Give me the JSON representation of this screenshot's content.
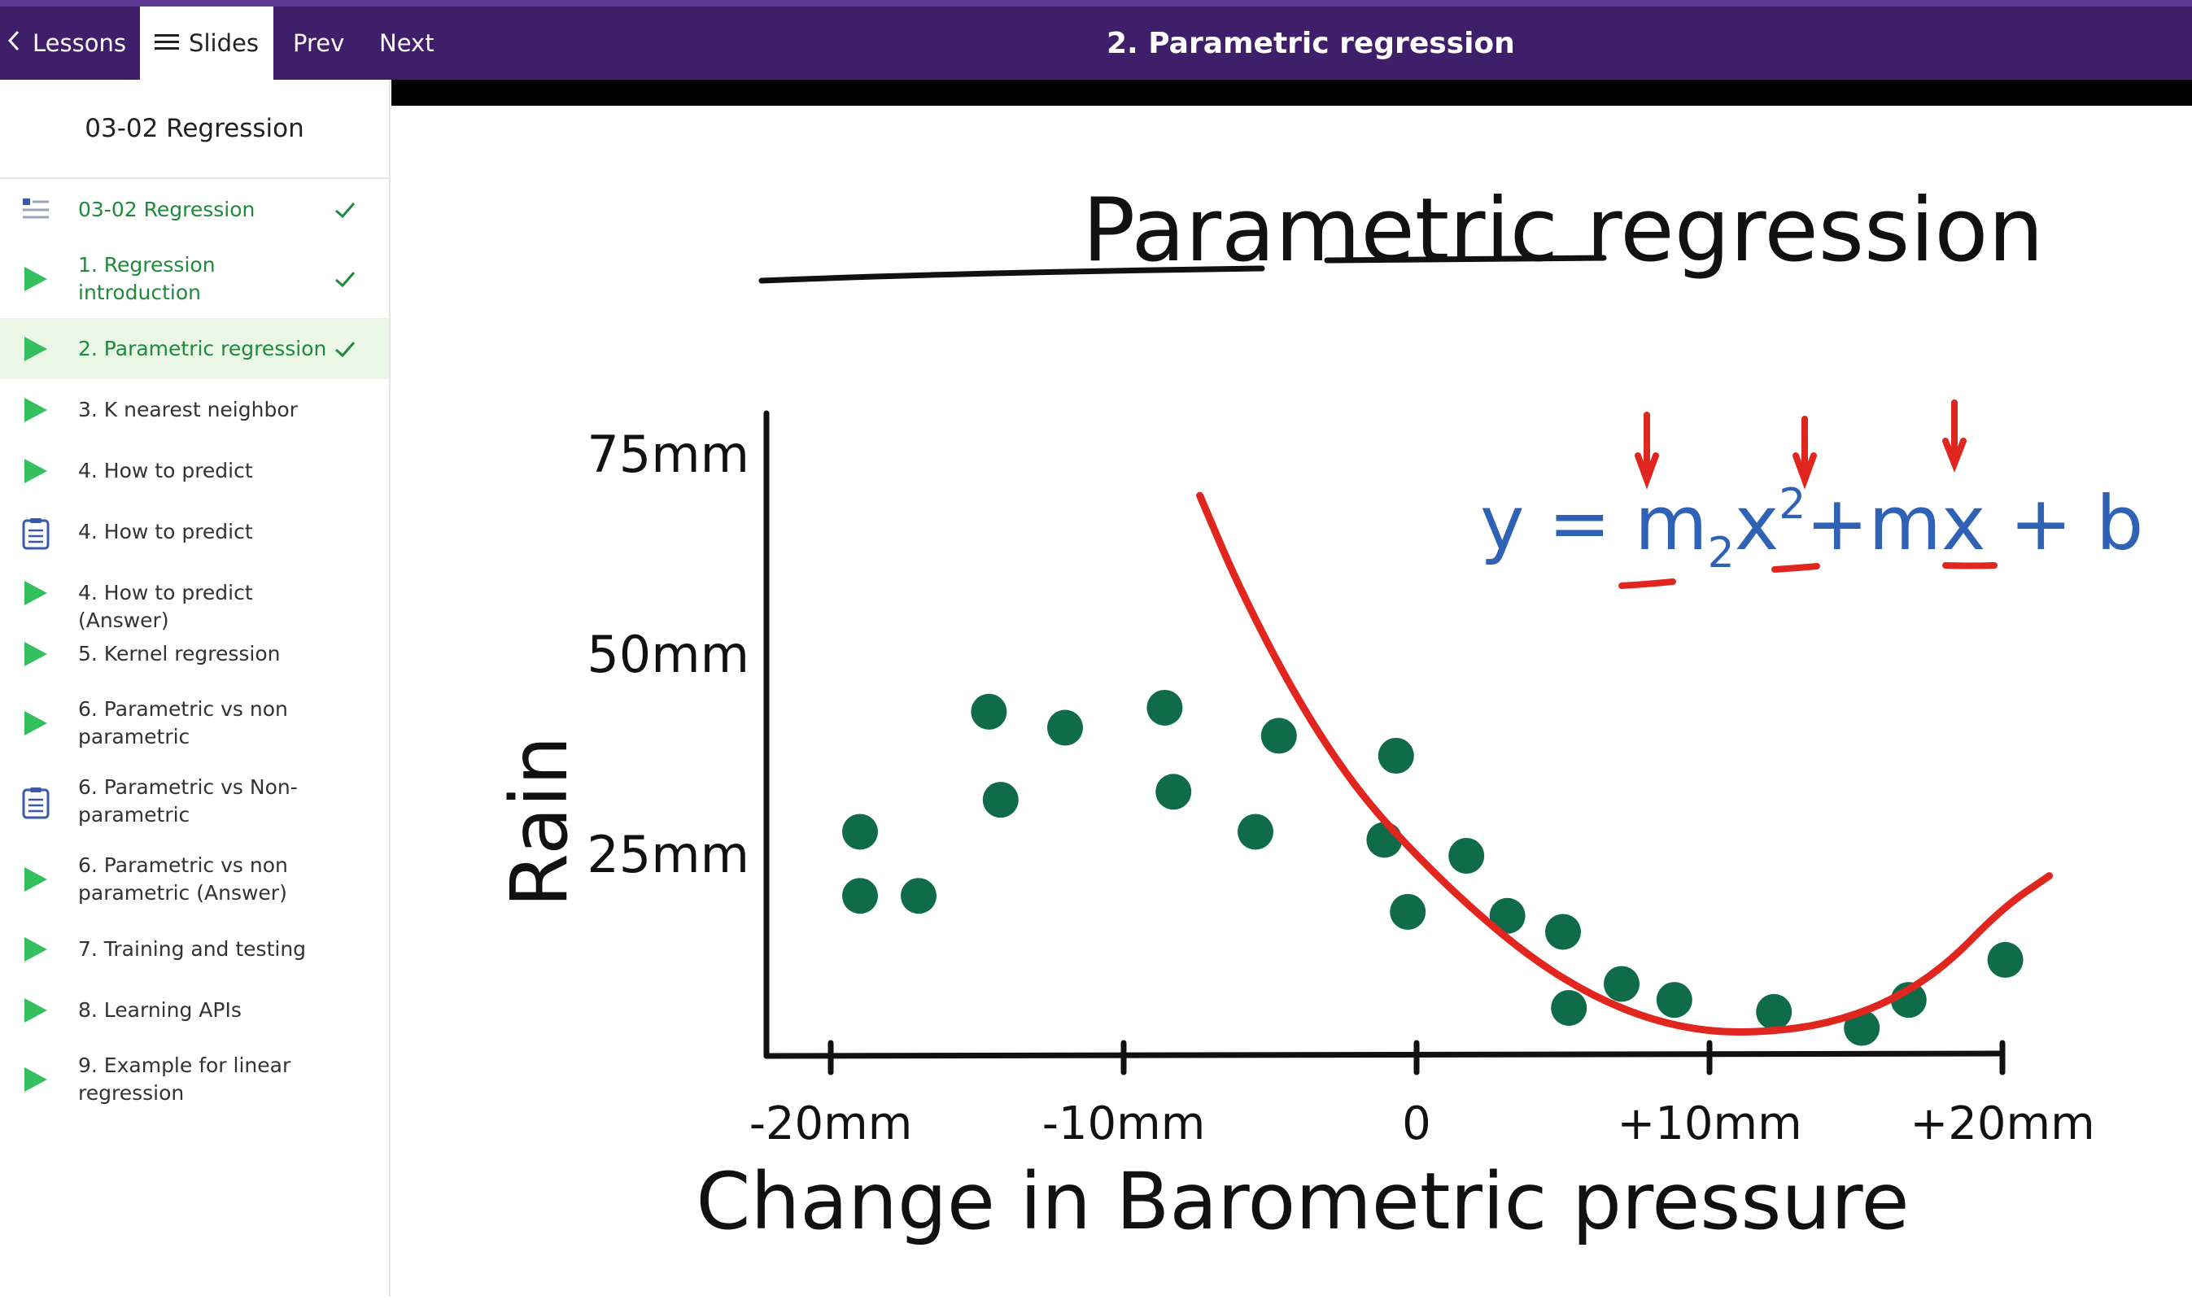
{
  "topbar": {
    "lessons_label": "Lessons",
    "slides_label": "Slides",
    "prev_label": "Prev",
    "next_label": "Next",
    "title": "2. Parametric regression"
  },
  "sidebar": {
    "header": "03-02 Regression",
    "items": [
      {
        "label_lines": [
          "03-02 Regression"
        ],
        "icon": "list-icon",
        "checked": true
      },
      {
        "label_lines": [
          "1. Regression",
          "introduction"
        ],
        "icon": "play-icon",
        "checked": true
      },
      {
        "label_lines": [
          "2. Parametric regression"
        ],
        "icon": "play-icon",
        "checked": true,
        "active": true
      },
      {
        "label_lines": [
          "3. K nearest neighbor"
        ],
        "icon": "play-icon",
        "checked": false
      },
      {
        "label_lines": [
          "4. How to predict"
        ],
        "icon": "play-icon",
        "checked": false
      },
      {
        "label_lines": [
          "4. How to predict"
        ],
        "icon": "quiz-icon",
        "checked": false
      },
      {
        "label_lines": [
          "4. How to predict (Answer)"
        ],
        "icon": "play-icon",
        "checked": false
      },
      {
        "label_lines": [
          "5. Kernel regression"
        ],
        "icon": "play-icon",
        "checked": false
      },
      {
        "label_lines": [
          "6. Parametric vs non",
          "parametric"
        ],
        "icon": "play-icon",
        "checked": false
      },
      {
        "label_lines": [
          "6. Parametric vs Non-",
          "parametric"
        ],
        "icon": "quiz-icon",
        "checked": false
      },
      {
        "label_lines": [
          "6. Parametric vs non",
          "parametric (Answer)"
        ],
        "icon": "play-icon",
        "checked": false
      },
      {
        "label_lines": [
          "7. Training and testing"
        ],
        "icon": "play-icon",
        "checked": false
      },
      {
        "label_lines": [
          "8. Learning APIs"
        ],
        "icon": "play-icon",
        "checked": false
      },
      {
        "label_lines": [
          "9. Example for linear",
          "regression"
        ],
        "icon": "play-icon",
        "checked": false
      }
    ]
  },
  "slide": {
    "title": "Parametric regression",
    "equation": {
      "prefix": "y = ",
      "m2": "m",
      "sub2": "2",
      "x2": "x",
      "sup2": "2",
      "plus1": "+",
      "m": "m",
      "x": "x",
      "plus2": " + ",
      "b": "b"
    },
    "chart_data": {
      "type": "scatter",
      "xlabel": "Change in Barometric pressure",
      "ylabel": "Rain",
      "x_ticks": [
        "-20mm",
        "-10mm",
        "0",
        "+10mm",
        "+20mm"
      ],
      "y_ticks": [
        "25mm",
        "50mm",
        "75mm"
      ],
      "xlim": [
        -20,
        20
      ],
      "ylim": [
        0,
        75
      ],
      "points": [
        {
          "x": -19,
          "y": 28
        },
        {
          "x": -19,
          "y": 20
        },
        {
          "x": -17,
          "y": 20
        },
        {
          "x": -14.6,
          "y": 43
        },
        {
          "x": -14.2,
          "y": 32
        },
        {
          "x": -12,
          "y": 41
        },
        {
          "x": -8.6,
          "y": 43.5
        },
        {
          "x": -8.3,
          "y": 33
        },
        {
          "x": -5.5,
          "y": 28
        },
        {
          "x": -4.7,
          "y": 40
        },
        {
          "x": -0.7,
          "y": 37.5
        },
        {
          "x": -1.1,
          "y": 27
        },
        {
          "x": -0.3,
          "y": 18
        },
        {
          "x": 1.7,
          "y": 25
        },
        {
          "x": 3.1,
          "y": 17.5
        },
        {
          "x": 5,
          "y": 15.5
        },
        {
          "x": 5.2,
          "y": 6
        },
        {
          "x": 7,
          "y": 9
        },
        {
          "x": 8.8,
          "y": 7
        },
        {
          "x": 12.2,
          "y": 5.5
        },
        {
          "x": 15.2,
          "y": 3.5
        },
        {
          "x": 16.8,
          "y": 7
        },
        {
          "x": 20.1,
          "y": 12
        }
      ],
      "fit_curve": {
        "color": "#e0261e",
        "points": [
          [
            -7.4,
            70
          ],
          [
            -6,
            58
          ],
          [
            -4,
            44
          ],
          [
            -2,
            33
          ],
          [
            0,
            25
          ],
          [
            2,
            18
          ],
          [
            4,
            12
          ],
          [
            6,
            7.5
          ],
          [
            8,
            4.5
          ],
          [
            10,
            3
          ],
          [
            12,
            3
          ],
          [
            14,
            4
          ],
          [
            16,
            6.5
          ],
          [
            18,
            11
          ],
          [
            20,
            18.5
          ],
          [
            21.6,
            22.5
          ]
        ]
      }
    }
  },
  "colors": {
    "topbar": "#3f1f6a",
    "done_green": "#1e8a3a",
    "play_green": "#35c060",
    "point_green": "#0f6b4a",
    "fit_red": "#e0261e",
    "equation_blue": "#2f62b5"
  }
}
